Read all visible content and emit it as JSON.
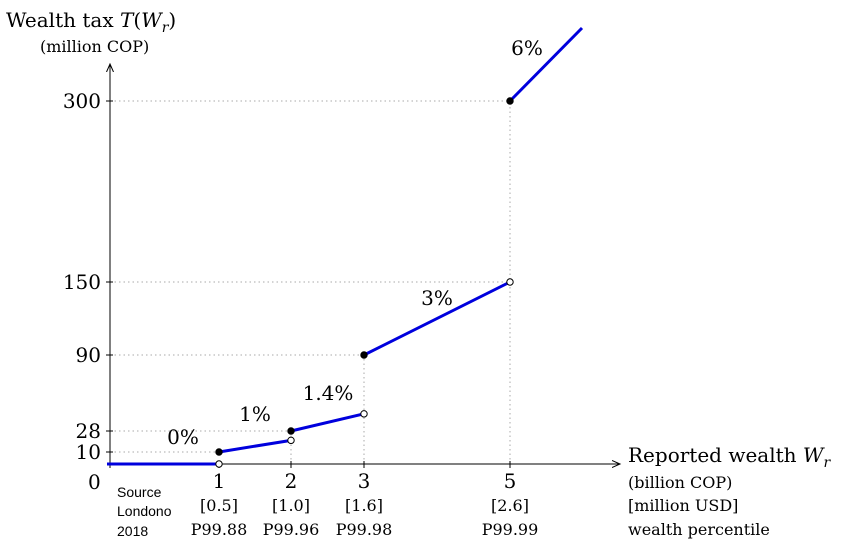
{
  "chart_data": {
    "type": "line",
    "title": "",
    "ylabel": {
      "prefix": "Wealth tax ",
      "math_letter": "T",
      "math_paren_open": "(",
      "math_var": "W",
      "math_sub": "r",
      "math_paren_close": ")",
      "unit": "(million COP)"
    },
    "xlabel": {
      "prefix": "Reported wealth ",
      "math_var": "W",
      "math_sub": "r",
      "lines": [
        "(billion COP)",
        "[million USD]",
        "wealth percentile"
      ]
    },
    "origin_label": "0",
    "source_note": [
      "Source",
      "Londono",
      "2018"
    ],
    "x_ticks": [
      {
        "x": 1,
        "label": "1",
        "usd": "[0.5]",
        "pct": "P99.88"
      },
      {
        "x": 2,
        "label": "2",
        "usd": "[1.0]",
        "pct": "P99.96"
      },
      {
        "x": 3,
        "label": "3",
        "usd": "[1.6]",
        "pct": "P99.98"
      },
      {
        "x": 5,
        "label": "5",
        "usd": "[2.6]",
        "pct": "P99.99"
      }
    ],
    "y_ticks": [
      {
        "y": 10,
        "label": "10"
      },
      {
        "y": 28,
        "label": "28"
      },
      {
        "y": 90,
        "label": "90"
      },
      {
        "y": 150,
        "label": "150"
      },
      {
        "y": 300,
        "label": "300"
      }
    ],
    "xlim": [
      -0.15,
      6.85
    ],
    "ylim": [
      0,
      365
    ],
    "series": [
      {
        "x": [
          -0.15,
          1
        ],
        "y": [
          0,
          0
        ],
        "rate_label": ""
      },
      {
        "x": [
          1,
          2
        ],
        "y": [
          10,
          20
        ],
        "rate_label": "0%"
      },
      {
        "x": [
          2,
          3
        ],
        "y": [
          28,
          42
        ],
        "rate_label": "1%"
      },
      {
        "x": [
          3,
          5
        ],
        "y": [
          90,
          150
        ],
        "rate_label": "1.4%"
      },
      {
        "x": [
          5,
          6
        ],
        "y": [
          300,
          360
        ],
        "rate_label": "3%"
      }
    ],
    "extra_label": "6%",
    "closed_points": [
      [
        1,
        10
      ],
      [
        2,
        28
      ],
      [
        3,
        90
      ],
      [
        5,
        300
      ]
    ],
    "open_points": [
      [
        1,
        0
      ],
      [
        2,
        20
      ],
      [
        3,
        42
      ],
      [
        5,
        150
      ]
    ],
    "colors": {
      "line": "#0000dd",
      "grid": "#aaaaaa",
      "axis": "#000000"
    }
  }
}
